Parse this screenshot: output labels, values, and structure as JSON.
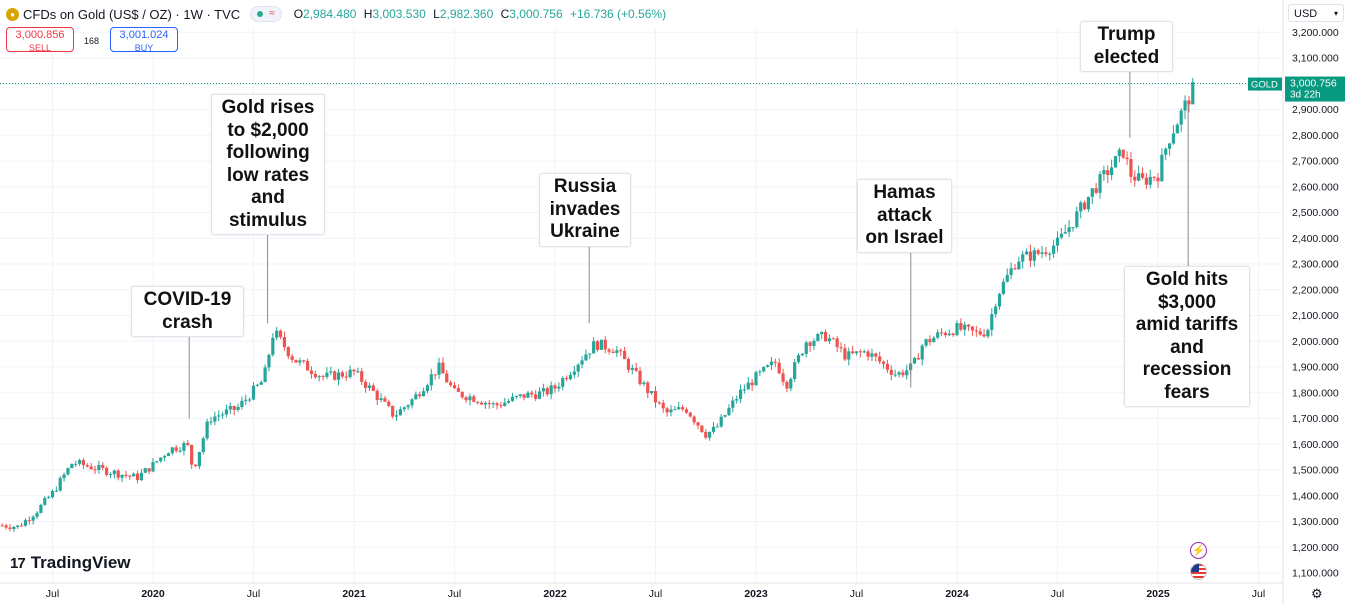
{
  "header": {
    "title": "CFDs on Gold (US$ / OZ) · 1W · TVC",
    "open_label": "O",
    "open": "2,984.480",
    "high_label": "H",
    "high": "3,003.530",
    "low_label": "L",
    "low": "2,982.360",
    "close_label": "C",
    "close": "3,000.756",
    "change": "+16.736 (+0.56%)"
  },
  "trade": {
    "sell_price": "3,000.856",
    "sell_label": "SELL",
    "spread": "168",
    "buy_price": "3,001.024",
    "buy_label": "BUY"
  },
  "currency": {
    "label": "USD"
  },
  "price_tag": {
    "symbol": "GOLD",
    "value": "3,000.756",
    "countdown": "3d 22h"
  },
  "logo": {
    "text": "TradingView"
  },
  "annotations": [
    {
      "id": "covid",
      "text": "COVID-19\ncrash"
    },
    {
      "id": "rates",
      "text": "Gold rises\nto $2,000\nfollowing\nlow rates\nand\nstimulus"
    },
    {
      "id": "russia",
      "text": "Russia\ninvades\nUkraine"
    },
    {
      "id": "hamas",
      "text": "Hamas\nattack\non Israel"
    },
    {
      "id": "trump",
      "text": "Trump\nelected"
    },
    {
      "id": "gold3000",
      "text": "Gold hits\n$3,000\namid tariffs\nand\nrecession\nfears"
    }
  ],
  "colors": {
    "up": "#26a69a",
    "down": "#ef5350",
    "price_tag": "#089981",
    "grid": "#f0f3fa"
  },
  "icons": [
    "gold-coin-icon",
    "chevron-down-icon",
    "lightning-icon",
    "us-flag-icon",
    "settings-gear-icon"
  ],
  "chart_data": {
    "type": "candlestick",
    "x_ticks": [
      {
        "label": "Jul",
        "t": 2019.5
      },
      {
        "label": "2020",
        "t": 2020.0
      },
      {
        "label": "Jul",
        "t": 2020.5
      },
      {
        "label": "2021",
        "t": 2021.0
      },
      {
        "label": "Jul",
        "t": 2021.5
      },
      {
        "label": "2022",
        "t": 2022.0
      },
      {
        "label": "Jul",
        "t": 2022.5
      },
      {
        "label": "2023",
        "t": 2023.0
      },
      {
        "label": "Jul",
        "t": 2023.5
      },
      {
        "label": "2024",
        "t": 2024.0
      },
      {
        "label": "Jul",
        "t": 2024.5
      },
      {
        "label": "2025",
        "t": 2025.0
      },
      {
        "label": "Jul",
        "t": 2025.5
      }
    ],
    "y_ticks": [
      "1,100.000",
      "1,200.000",
      "1,300.000",
      "1,400.000",
      "1,500.000",
      "1,600.000",
      "1,700.000",
      "1,800.000",
      "1,900.000",
      "2,000.000",
      "2,100.000",
      "2,200.000",
      "2,300.000",
      "2,400.000",
      "2,500.000",
      "2,600.000",
      "2,700.000",
      "2,800.000",
      "2,900.000",
      "3,000.000",
      "3,100.000",
      "3,200.000"
    ],
    "y_range": [
      1050,
      3230
    ],
    "last_price": 3000.756,
    "price_path": [
      [
        2019.25,
        1285
      ],
      [
        2019.33,
        1280
      ],
      [
        2019.42,
        1340
      ],
      [
        2019.5,
        1410
      ],
      [
        2019.6,
        1530
      ],
      [
        2019.75,
        1500
      ],
      [
        2019.92,
        1470
      ],
      [
        2020.0,
        1520
      ],
      [
        2020.08,
        1580
      ],
      [
        2020.17,
        1600
      ],
      [
        2020.2,
        1500
      ],
      [
        2020.28,
        1700
      ],
      [
        2020.42,
        1740
      ],
      [
        2020.55,
        1850
      ],
      [
        2020.6,
        2040
      ],
      [
        2020.7,
        1930
      ],
      [
        2020.85,
        1860
      ],
      [
        2021.0,
        1880
      ],
      [
        2021.1,
        1800
      ],
      [
        2021.2,
        1710
      ],
      [
        2021.3,
        1780
      ],
      [
        2021.42,
        1900
      ],
      [
        2021.5,
        1800
      ],
      [
        2021.6,
        1780
      ],
      [
        2021.7,
        1750
      ],
      [
        2021.85,
        1790
      ],
      [
        2021.95,
        1800
      ],
      [
        2022.0,
        1820
      ],
      [
        2022.15,
        1950
      ],
      [
        2022.2,
        1990
      ],
      [
        2022.3,
        1970
      ],
      [
        2022.45,
        1820
      ],
      [
        2022.55,
        1720
      ],
      [
        2022.65,
        1740
      ],
      [
        2022.75,
        1640
      ],
      [
        2022.8,
        1660
      ],
      [
        2022.92,
        1800
      ],
      [
        2023.0,
        1860
      ],
      [
        2023.1,
        1920
      ],
      [
        2023.15,
        1830
      ],
      [
        2023.25,
        2000
      ],
      [
        2023.35,
        2020
      ],
      [
        2023.45,
        1940
      ],
      [
        2023.55,
        1960
      ],
      [
        2023.7,
        1870
      ],
      [
        2023.78,
        1900
      ],
      [
        2023.83,
        1990
      ],
      [
        2023.92,
        2030
      ],
      [
        2024.0,
        2050
      ],
      [
        2024.1,
        2030
      ],
      [
        2024.15,
        2040
      ],
      [
        2024.2,
        2180
      ],
      [
        2024.3,
        2320
      ],
      [
        2024.4,
        2340
      ],
      [
        2024.5,
        2380
      ],
      [
        2024.58,
        2470
      ],
      [
        2024.67,
        2580
      ],
      [
        2024.75,
        2660
      ],
      [
        2024.83,
        2740
      ],
      [
        2024.86,
        2650
      ],
      [
        2024.92,
        2620
      ],
      [
        2025.0,
        2650
      ],
      [
        2025.05,
        2780
      ],
      [
        2025.1,
        2860
      ],
      [
        2025.15,
        2940
      ],
      [
        2025.19,
        3000
      ]
    ],
    "events": [
      {
        "id": "covid",
        "t": 2020.18,
        "price": 1700
      },
      {
        "id": "rates",
        "t": 2020.57,
        "price": 2070
      },
      {
        "id": "russia",
        "t": 2022.17,
        "price": 2070
      },
      {
        "id": "hamas",
        "t": 2023.77,
        "price": 1820
      },
      {
        "id": "trump",
        "t": 2024.86,
        "price": 2790
      },
      {
        "id": "gold3000",
        "t": 2025.15,
        "price": 2920
      }
    ]
  }
}
